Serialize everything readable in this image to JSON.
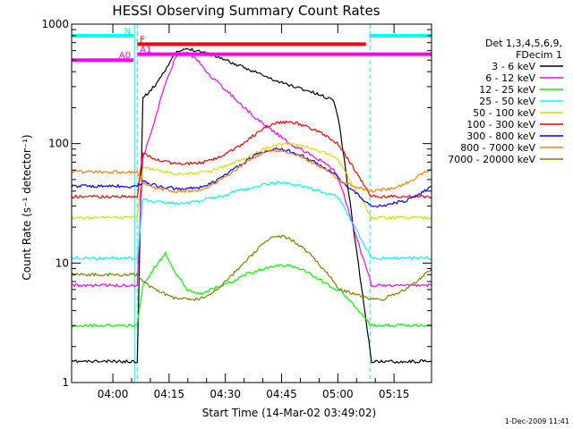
{
  "chart_data": {
    "type": "line",
    "title": "HESSI Observing Summary Count Rates",
    "xlabel": "Start Time (14-Mar-02 03:49:02)",
    "ylabel": "Count Rate (s⁻¹ detector⁻¹)",
    "x_unit": "minutes since 03:49:02",
    "xlim": [
      0,
      96
    ],
    "ylim": [
      1,
      1000
    ],
    "yscale": "log",
    "x_ticks": [
      {
        "x": 11,
        "label": "04:00"
      },
      {
        "x": 26,
        "label": "04:15"
      },
      {
        "x": 41,
        "label": "04:30"
      },
      {
        "x": 56,
        "label": "04:45"
      },
      {
        "x": 71,
        "label": "05:00"
      },
      {
        "x": 86,
        "label": "05:15"
      }
    ],
    "y_ticks": [
      {
        "y": 1,
        "label": "1"
      },
      {
        "y": 10,
        "label": "10"
      },
      {
        "y": 100,
        "label": "100"
      },
      {
        "y": 1000,
        "label": "1000"
      }
    ],
    "legend_title": [
      "Det 1,3,4,5,6,9,",
      "FDecim 1"
    ],
    "legend_position": "right",
    "x": [
      0,
      3,
      6,
      9,
      12,
      15,
      17.5,
      19,
      22,
      25,
      28,
      31,
      34,
      37,
      40,
      43,
      46,
      49,
      52,
      55,
      58,
      61,
      64,
      67,
      70,
      71.5,
      80,
      83,
      86,
      89,
      92,
      96
    ],
    "series": [
      {
        "name": "3 - 6 keV",
        "color": "#000000",
        "values": [
          1.5,
          1.5,
          1.5,
          1.5,
          1.5,
          1.5,
          1.5,
          240,
          300,
          420,
          580,
          620,
          600,
          560,
          520,
          470,
          430,
          400,
          360,
          330,
          310,
          290,
          270,
          250,
          230,
          140,
          1.5,
          1.5,
          1.5,
          1.5,
          1.5,
          1.5
        ]
      },
      {
        "name": "6 - 12 keV",
        "color": "#ff00ff",
        "values": [
          6.5,
          6.5,
          6.5,
          6.5,
          6.5,
          6.5,
          6.5,
          75,
          150,
          320,
          550,
          580,
          480,
          370,
          300,
          250,
          200,
          165,
          140,
          120,
          100,
          90,
          80,
          70,
          60,
          48,
          6.5,
          6.5,
          6.5,
          6.5,
          6.5,
          6.5
        ]
      },
      {
        "name": "12 - 25 keV",
        "color": "#00ff00",
        "values": [
          3,
          3,
          3,
          3,
          3,
          3,
          3,
          6.5,
          9,
          12,
          8,
          6,
          5.5,
          6,
          6.5,
          7,
          8,
          8.5,
          9,
          9.5,
          9.5,
          9,
          8,
          7,
          6,
          6,
          3,
          3,
          3,
          3,
          3,
          3
        ]
      },
      {
        "name": "25 - 50 keV",
        "color": "#00ffff",
        "values": [
          11,
          11,
          11,
          11,
          11,
          11,
          11,
          34,
          33,
          32,
          32,
          32,
          33,
          35,
          36,
          39,
          41,
          43,
          46,
          47,
          46,
          44,
          42,
          39,
          37,
          34,
          11,
          11,
          11,
          11,
          11,
          11
        ]
      },
      {
        "name": "50 - 100 keV",
        "color": "#dddd00",
        "values": [
          24,
          24,
          24,
          24,
          24,
          24,
          24,
          64,
          61,
          58,
          56,
          56,
          57,
          59,
          63,
          68,
          75,
          83,
          92,
          98,
          100,
          97,
          91,
          85,
          78,
          70,
          24,
          24,
          24,
          24,
          24,
          24
        ]
      },
      {
        "name": "100 - 300 keV",
        "color": "#ff0000",
        "values": [
          36,
          36,
          36,
          36,
          36,
          36,
          36,
          83,
          75,
          70,
          68,
          68,
          69,
          72,
          78,
          88,
          102,
          120,
          138,
          150,
          152,
          145,
          133,
          120,
          105,
          95,
          36,
          36,
          36,
          36,
          36,
          36
        ]
      },
      {
        "name": "300 - 800 keV",
        "color": "#0000ff",
        "values": [
          44,
          44,
          44,
          44,
          44,
          44,
          44,
          48,
          45,
          43,
          42,
          42,
          43,
          46,
          52,
          60,
          70,
          80,
          88,
          90,
          87,
          80,
          72,
          64,
          56,
          50,
          30,
          30,
          32,
          33,
          36,
          44
        ]
      },
      {
        "name": "800 - 7000 keV",
        "color": "#ff8000",
        "values": [
          58,
          58,
          58,
          58,
          58,
          58,
          58,
          46,
          43,
          41,
          40,
          40,
          41,
          44,
          50,
          58,
          68,
          78,
          86,
          88,
          85,
          78,
          70,
          62,
          54,
          48,
          40,
          41,
          43,
          46,
          52,
          62
        ]
      },
      {
        "name": "7000 - 20000 keV",
        "color": "#808000",
        "values": [
          8,
          8,
          8,
          8,
          8,
          8,
          8,
          7,
          6,
          5.5,
          5,
          5,
          5,
          5.5,
          6.5,
          8,
          10,
          12.5,
          15.5,
          17,
          16,
          14,
          11.5,
          9,
          7,
          6,
          5,
          5,
          5.5,
          6,
          7,
          9
        ]
      }
    ],
    "state_bars": [
      {
        "label": "N",
        "color": "#00ffff",
        "level": 800,
        "segments": [
          [
            0,
            16.5
          ],
          [
            79.5,
            96
          ]
        ]
      },
      {
        "label": "F",
        "color": "#ff0000",
        "level": 680,
        "segments": [
          [
            17.5,
            78.5
          ]
        ]
      },
      {
        "label": "A0",
        "color": "#ff00ff",
        "level": 500,
        "segments": [
          [
            0,
            16.5
          ]
        ]
      },
      {
        "label": "A1",
        "color": "#ff00ff",
        "level": 560,
        "segments": [
          [
            17.5,
            96
          ]
        ]
      }
    ],
    "markers": [
      {
        "color": "#00ffff",
        "x": 0,
        "style": "solid"
      },
      {
        "color": "#00ffff",
        "x": 16.8,
        "style": "solid"
      },
      {
        "color": "#00ffff",
        "x": 17.6,
        "style": "dashed"
      },
      {
        "color": "#00ffff",
        "x": 79.6,
        "style": "dashed"
      },
      {
        "color": "#00ffff",
        "x": 96,
        "style": "dashed"
      }
    ]
  },
  "footer": {
    "date": "1-Dec-2009 11:41"
  }
}
